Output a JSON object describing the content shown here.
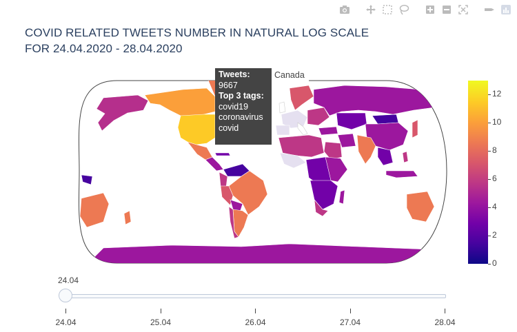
{
  "title": {
    "line1": "COVID RELATED TWEETS NUMBER IN NATURAL LOG SCALE",
    "line2": "FOR 24.04.2020 - 28.04.2020"
  },
  "modebar": [
    {
      "name": "camera-icon"
    },
    {
      "name": "pan-icon"
    },
    {
      "name": "box-select-icon"
    },
    {
      "name": "lasso-select-icon"
    },
    {
      "name": "zoom-in-icon"
    },
    {
      "name": "zoom-out-icon"
    },
    {
      "name": "reset-view-icon"
    },
    {
      "name": "toggle-spikelines-icon"
    },
    {
      "name": "plotly-logo-icon"
    }
  ],
  "tooltip": {
    "label_tweets": "Tweets:",
    "tweets_value": "9667",
    "label_tags": "Top 3 tags:",
    "tags": [
      "covid19",
      "coronavirus",
      "covid"
    ],
    "country": "Canada"
  },
  "chart_data": {
    "type": "choropleth",
    "title": "COVID RELATED TWEETS NUMBER IN NATURAL LOG SCALE FOR 24.04.2020 - 28.04.2020",
    "colorscale": "plasma",
    "colorbar": {
      "range": [
        0,
        13
      ],
      "ticks": [
        0,
        2,
        4,
        6,
        8,
        10,
        12
      ]
    },
    "colors": {
      "min": "#0d0887",
      "max": "#f0f921",
      "missing": "#ffffff",
      "hover_bg": "#444444"
    },
    "highlighted": {
      "country": "Canada",
      "tweets": 9667
    }
  },
  "slider": {
    "current_label": "24.04",
    "steps": [
      "24.04",
      "25.04",
      "26.04",
      "27.04",
      "28.04"
    ],
    "active_index": 0
  }
}
